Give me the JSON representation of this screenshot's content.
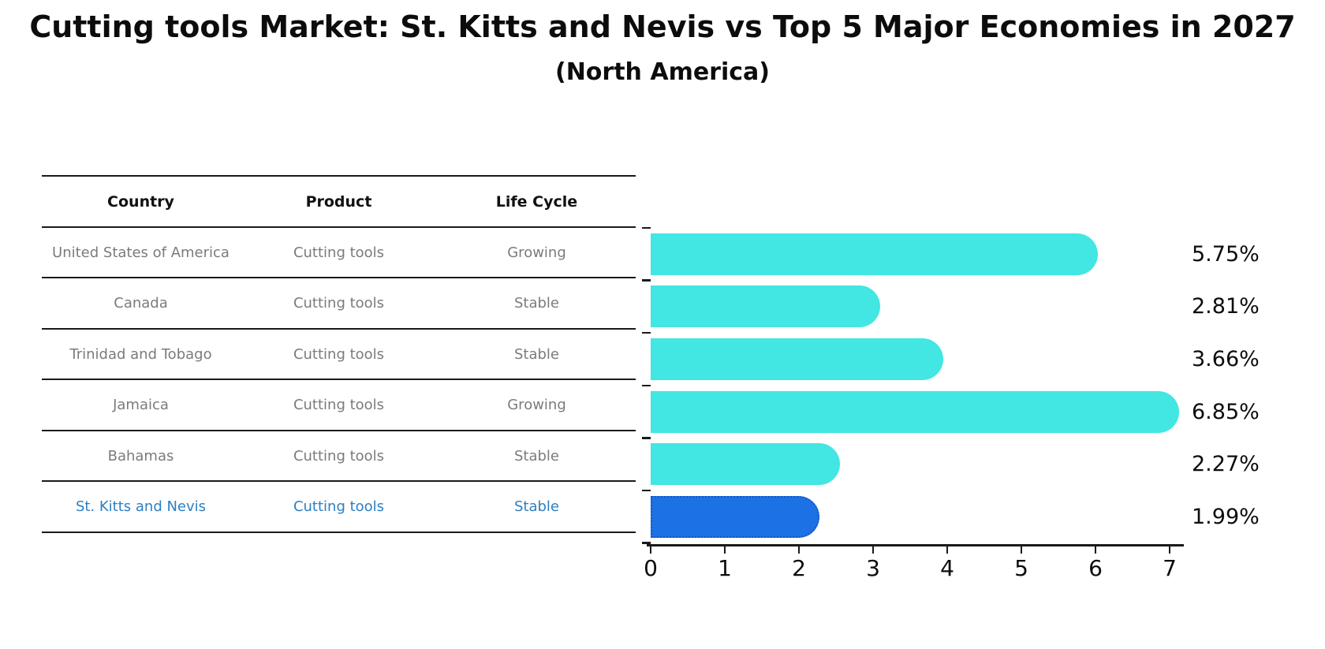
{
  "header": {
    "title": "Cutting tools Market: St. Kitts and Nevis vs Top 5 Major Economies in 2027",
    "subtitle": "(North America)"
  },
  "table": {
    "headers": [
      "Country",
      "Product",
      "Life Cycle"
    ],
    "rows": [
      {
        "country": "United States of America",
        "product": "Cutting tools",
        "life_cycle": "Growing",
        "highlight": false
      },
      {
        "country": "Canada",
        "product": "Cutting tools",
        "life_cycle": "Stable",
        "highlight": false
      },
      {
        "country": "Trinidad and Tobago",
        "product": "Cutting tools",
        "life_cycle": "Stable",
        "highlight": false
      },
      {
        "country": "Jamaica",
        "product": "Cutting tools",
        "life_cycle": "Growing",
        "highlight": false
      },
      {
        "country": "Bahamas",
        "product": "Cutting tools",
        "life_cycle": "Stable",
        "highlight": false
      },
      {
        "country": "St. Kitts and Nevis",
        "product": "Cutting tools",
        "life_cycle": "Stable",
        "highlight": true
      }
    ]
  },
  "chart_data": {
    "type": "bar",
    "orientation": "horizontal",
    "title": "Cutting tools Market: St. Kitts and Nevis vs Top 5 Major Economies in 2027",
    "subtitle": "(North America)",
    "categories": [
      "United States of America",
      "Canada",
      "Trinidad and Tobago",
      "Jamaica",
      "Bahamas",
      "St. Kitts and Nevis"
    ],
    "values": [
      5.75,
      2.81,
      3.66,
      6.85,
      2.27,
      1.99
    ],
    "value_labels": [
      "5.75%",
      "2.81%",
      "3.66%",
      "6.85%",
      "2.27%",
      "1.99%"
    ],
    "xlabel": "",
    "ylabel": "",
    "xlim": [
      0,
      7
    ],
    "x_ticks": [
      0,
      1,
      2,
      3,
      4,
      5,
      6,
      7
    ],
    "grid": false,
    "legend": "none",
    "bar_color": "#42e6e2",
    "highlight_index": 5,
    "highlight_color": "#1c72e4",
    "highlight_border_color": "#1256cb",
    "highlight_text_color": "#2d7fc2",
    "row_text_color": "#7b7b7b",
    "axis_color": "#1a1a1a"
  }
}
